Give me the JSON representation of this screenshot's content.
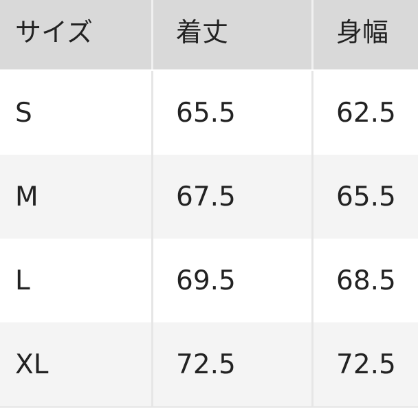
{
  "table": {
    "headers": [
      "サイズ",
      "着丈",
      "身幅"
    ],
    "rows": [
      [
        "S",
        "65.5",
        "62.5"
      ],
      [
        "M",
        "67.5",
        "65.5"
      ],
      [
        "L",
        "69.5",
        "68.5"
      ],
      [
        "XL",
        "72.5",
        "72.5"
      ]
    ]
  },
  "colors": {
    "header_bg": "#d9d9d9",
    "alt_row_bg": "#f4f4f4",
    "text": "#222222"
  }
}
